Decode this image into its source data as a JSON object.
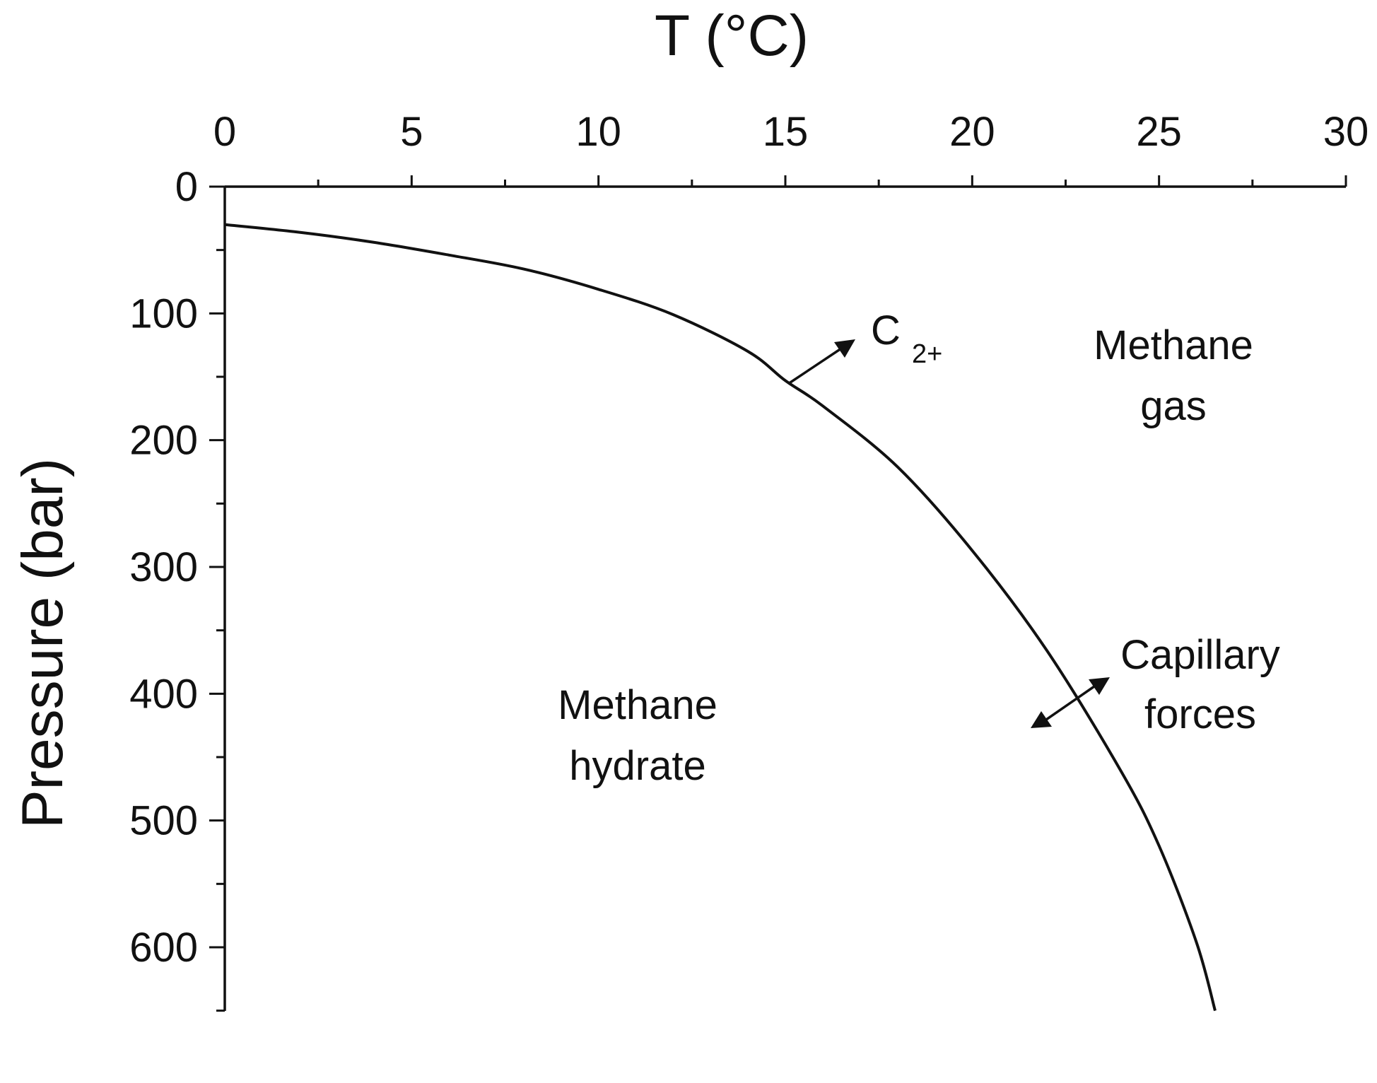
{
  "chart_data": {
    "type": "line",
    "title": "",
    "xlabel": "T (°C)",
    "ylabel": "Pressure (bar)",
    "xlim": [
      0,
      30
    ],
    "ylim": [
      0,
      650
    ],
    "y_inverted": true,
    "x_axis_position": "top",
    "grid": false,
    "x_ticks": [
      "0",
      "5",
      "10",
      "15",
      "20",
      "25",
      "30"
    ],
    "y_ticks": [
      "0",
      "100",
      "200",
      "300",
      "400",
      "500",
      "600"
    ],
    "series": [
      {
        "x": [
          0,
          2,
          4,
          6,
          8,
          10,
          12,
          14,
          15,
          16,
          18,
          20,
          22,
          24,
          25,
          26,
          26.5
        ],
        "y": [
          30,
          36,
          44,
          54,
          65,
          81,
          101,
          130,
          153,
          173,
          221,
          287,
          366,
          462,
          520,
          596,
          650
        ]
      }
    ],
    "annotations": [
      {
        "text": "C",
        "subscript": "2+"
      },
      {
        "text": "Methane",
        "line2": "gas"
      },
      {
        "text": "Capillary",
        "line2": "forces"
      },
      {
        "text": "Methane",
        "line2": "hydrate"
      }
    ]
  }
}
